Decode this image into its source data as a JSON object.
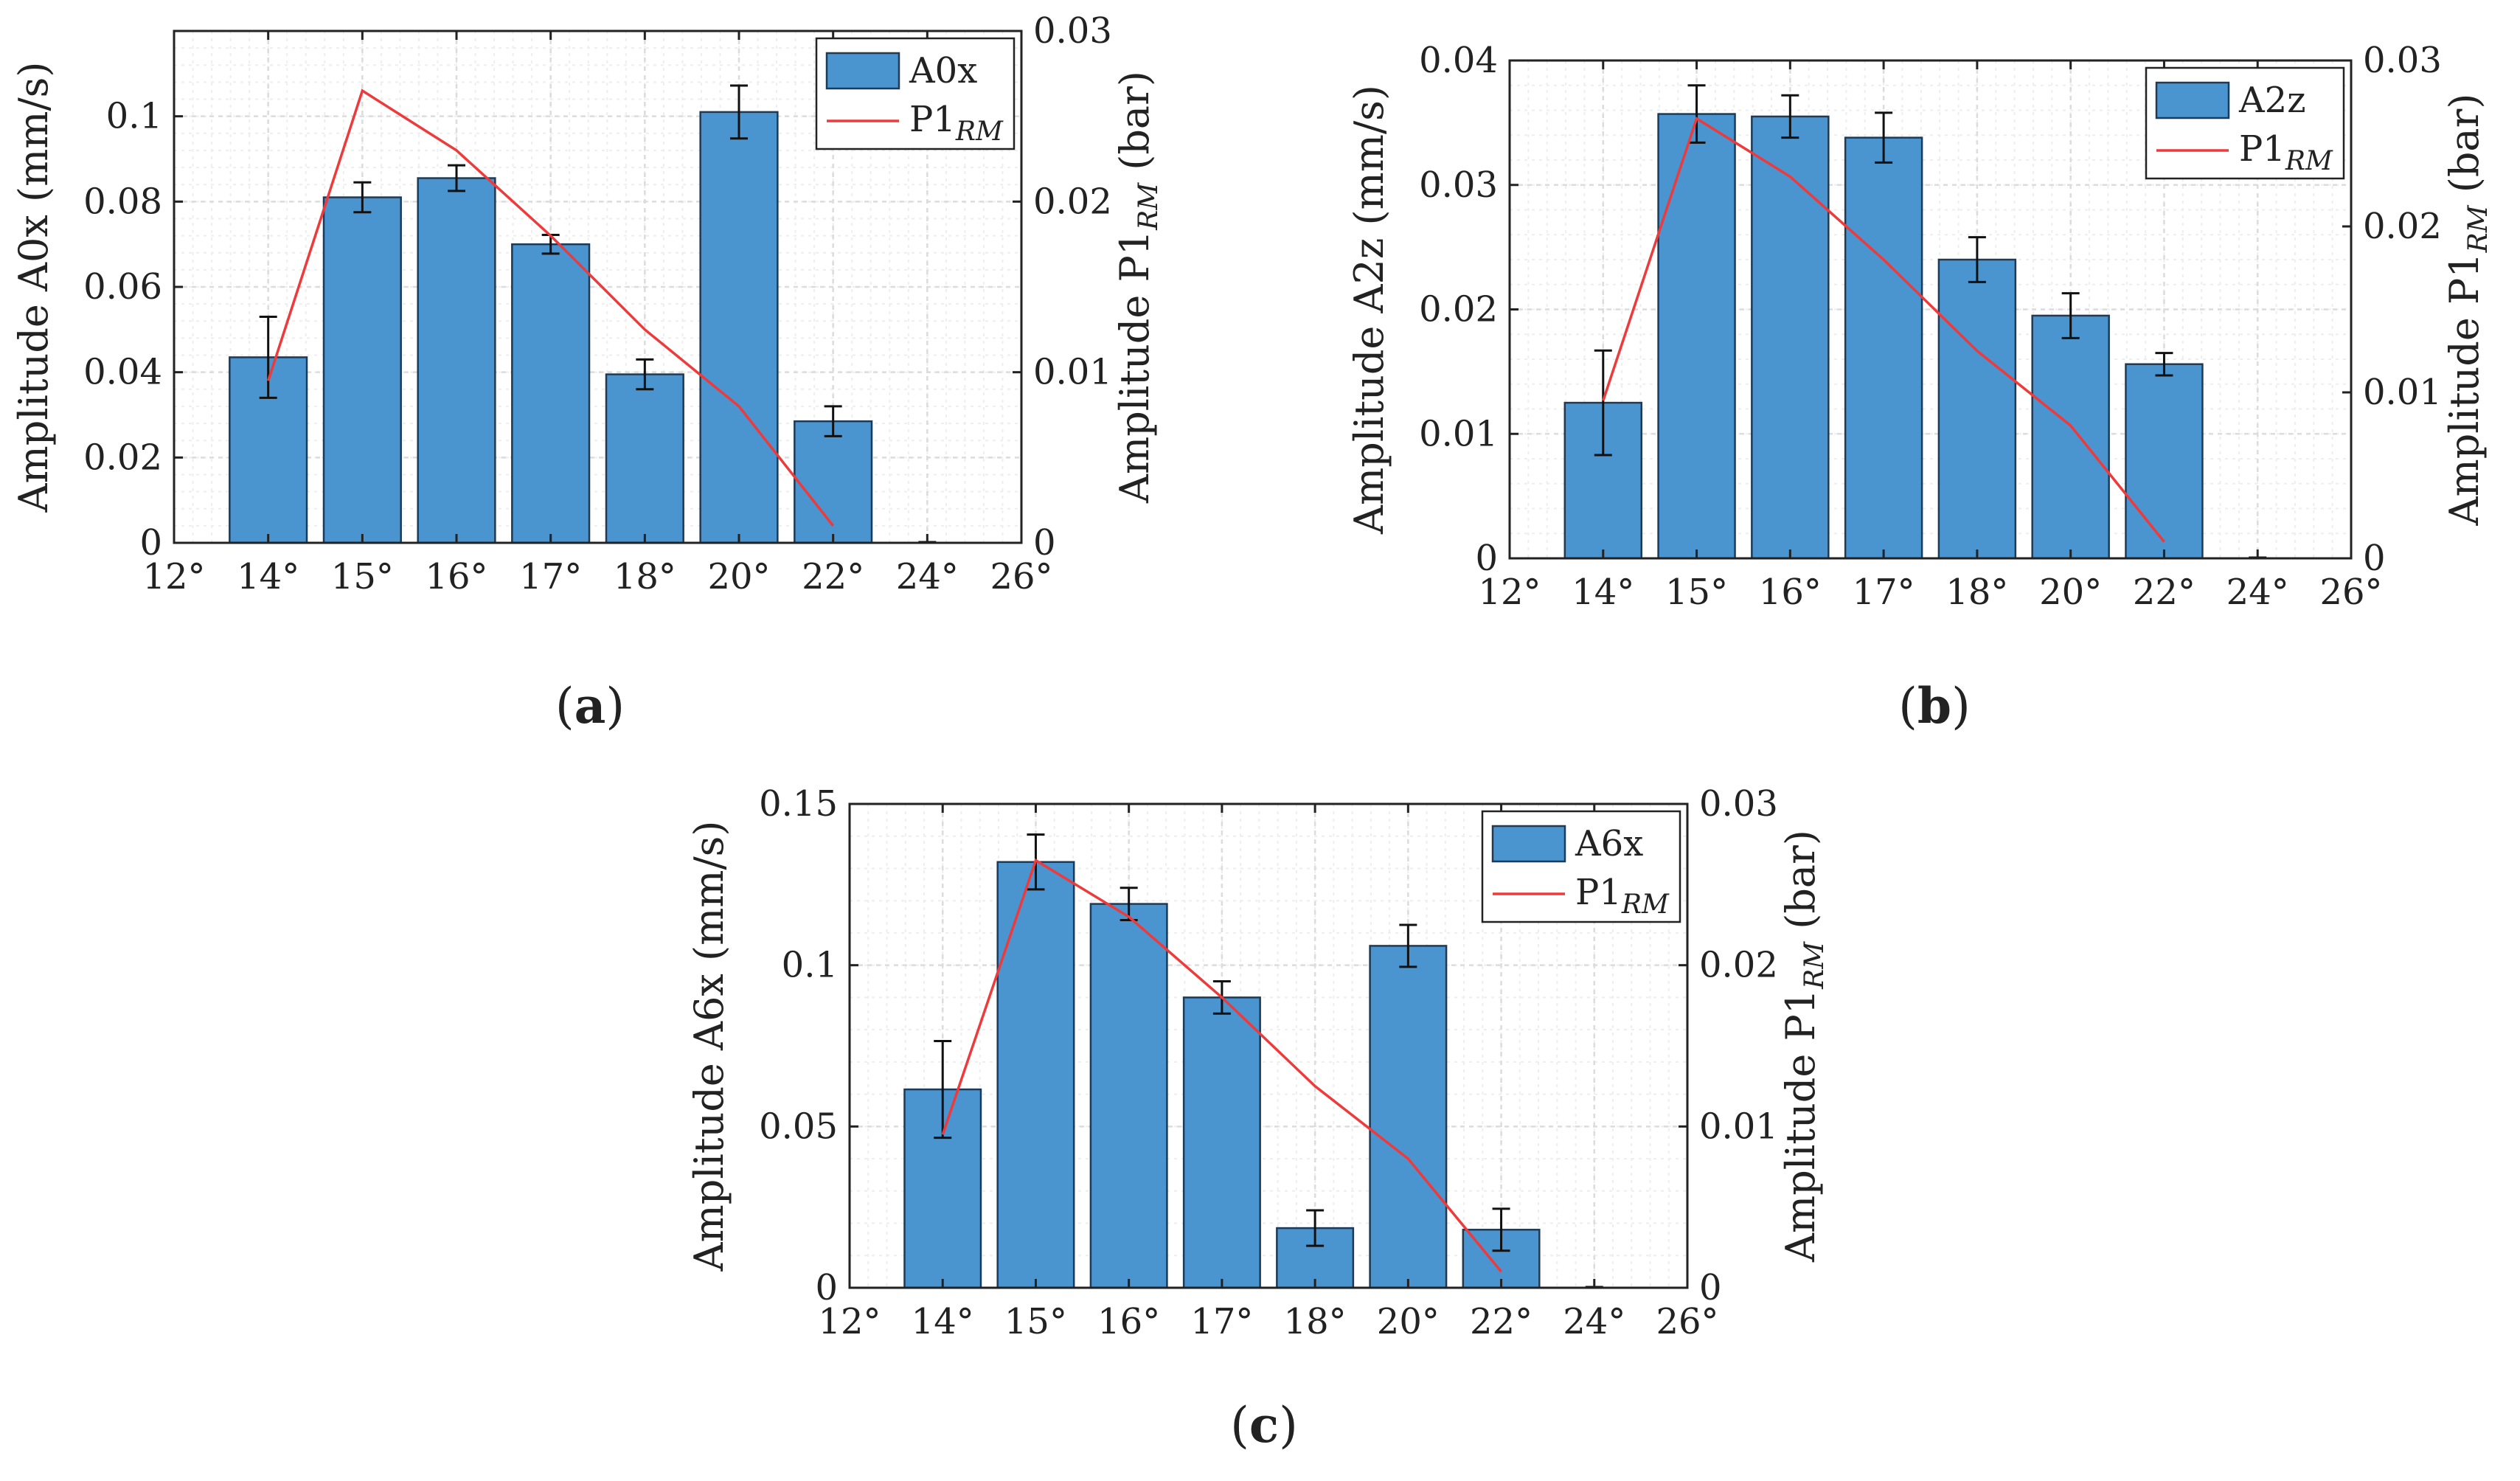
{
  "colors": {
    "bar": "#4a94d0",
    "bar_edge": "#1e3a55",
    "line": "#ee3a3a",
    "grid": "#dcdcdc",
    "minor_grid": "#eeeeee"
  },
  "chart_data": [
    {
      "id": "a",
      "type": "bar",
      "caption_open": "(",
      "caption_letter": "a",
      "caption_close": ")",
      "categories": [
        "12°",
        "14°",
        "15°",
        "16°",
        "17°",
        "18°",
        "20°",
        "22°",
        "24°",
        "26°"
      ],
      "series": [
        {
          "name": "A0x",
          "axis": "left",
          "kind": "bar",
          "values": [
            null,
            0.0435,
            0.081,
            0.0855,
            0.07,
            0.0395,
            0.101,
            0.0285,
            0,
            null
          ],
          "errors": [
            null,
            0.0095,
            0.0035,
            0.003,
            0.0022,
            0.0035,
            0.0062,
            0.0035,
            0,
            null
          ]
        },
        {
          "name_main": "P1",
          "name_sub": "RM",
          "axis": "right",
          "kind": "line",
          "values": [
            null,
            0.0095,
            0.0265,
            0.023,
            0.018,
            0.0125,
            0.008,
            0.001,
            null,
            null
          ]
        }
      ],
      "ylabel": "Amplitude A0x (mm/s)",
      "y2label_main": "Amplitude P1",
      "y2label_sub": "RM",
      "y2label_unit": " (bar)",
      "ylim": [
        0,
        0.12
      ],
      "y2lim": [
        0,
        0.03
      ],
      "yticks": [
        0,
        0.02,
        0.04,
        0.06,
        0.08,
        0.1
      ],
      "yticklabels": [
        "0",
        "0.02",
        "0.04",
        "0.06",
        "0.08",
        "0.1"
      ],
      "y2ticks": [
        0,
        0.01,
        0.02,
        0.03
      ],
      "y2ticklabels": [
        "0",
        "0.01",
        "0.02",
        "0.03"
      ],
      "grid": true,
      "legend": "top-right"
    },
    {
      "id": "b",
      "type": "bar",
      "caption_open": "(",
      "caption_letter": "b",
      "caption_close": ")",
      "categories": [
        "12°",
        "14°",
        "15°",
        "16°",
        "17°",
        "18°",
        "20°",
        "22°",
        "24°",
        "26°"
      ],
      "series": [
        {
          "name": "A2z",
          "axis": "left",
          "kind": "bar",
          "values": [
            null,
            0.0125,
            0.0357,
            0.0355,
            0.0338,
            0.024,
            0.0195,
            0.0156,
            0,
            null
          ],
          "errors": [
            null,
            0.0042,
            0.0023,
            0.0017,
            0.002,
            0.0018,
            0.0018,
            0.0009,
            0,
            null
          ]
        },
        {
          "name_main": "P1",
          "name_sub": "RM",
          "axis": "right",
          "kind": "line",
          "values": [
            null,
            0.0095,
            0.0265,
            0.023,
            0.018,
            0.0125,
            0.008,
            0.001,
            null,
            null
          ]
        }
      ],
      "ylabel": "Amplitude A2z (mm/s)",
      "y2label_main": "Amplitude P1",
      "y2label_sub": "RM",
      "y2label_unit": " (bar)",
      "ylim": [
        0,
        0.04
      ],
      "y2lim": [
        0,
        0.03
      ],
      "yticks": [
        0,
        0.01,
        0.02,
        0.03,
        0.04
      ],
      "yticklabels": [
        "0",
        "0.01",
        "0.02",
        "0.03",
        "0.04"
      ],
      "y2ticks": [
        0,
        0.01,
        0.02,
        0.03
      ],
      "y2ticklabels": [
        "0",
        "0.01",
        "0.02",
        "0.03"
      ],
      "grid": true,
      "legend": "top-right"
    },
    {
      "id": "c",
      "type": "bar",
      "caption_open": "(",
      "caption_letter": "c",
      "caption_close": ")",
      "categories": [
        "12°",
        "14°",
        "15°",
        "16°",
        "17°",
        "18°",
        "20°",
        "22°",
        "24°",
        "26°"
      ],
      "series": [
        {
          "name": "A6x",
          "axis": "left",
          "kind": "bar",
          "values": [
            null,
            0.0615,
            0.132,
            0.119,
            0.09,
            0.0185,
            0.106,
            0.018,
            0,
            null
          ],
          "errors": [
            null,
            0.015,
            0.0085,
            0.005,
            0.005,
            0.0055,
            0.0065,
            0.0065,
            0,
            null
          ]
        },
        {
          "name_main": "P1",
          "name_sub": "RM",
          "axis": "right",
          "kind": "line",
          "values": [
            null,
            0.0095,
            0.0265,
            0.023,
            0.018,
            0.0125,
            0.008,
            0.001,
            null,
            null
          ]
        }
      ],
      "ylabel": "Amplitude A6x (mm/s)",
      "y2label_main": "Amplitude P1",
      "y2label_sub": "RM",
      "y2label_unit": " (bar)",
      "ylim": [
        0,
        0.15
      ],
      "y2lim": [
        0,
        0.03
      ],
      "yticks": [
        0,
        0.05,
        0.1,
        0.15
      ],
      "yticklabels": [
        "0",
        "0.05",
        "0.1",
        "0.15"
      ],
      "y2ticks": [
        0,
        0.01,
        0.02,
        0.03
      ],
      "y2ticklabels": [
        "0",
        "0.01",
        "0.02",
        "0.03"
      ],
      "grid": true,
      "legend": "top-right"
    }
  ]
}
